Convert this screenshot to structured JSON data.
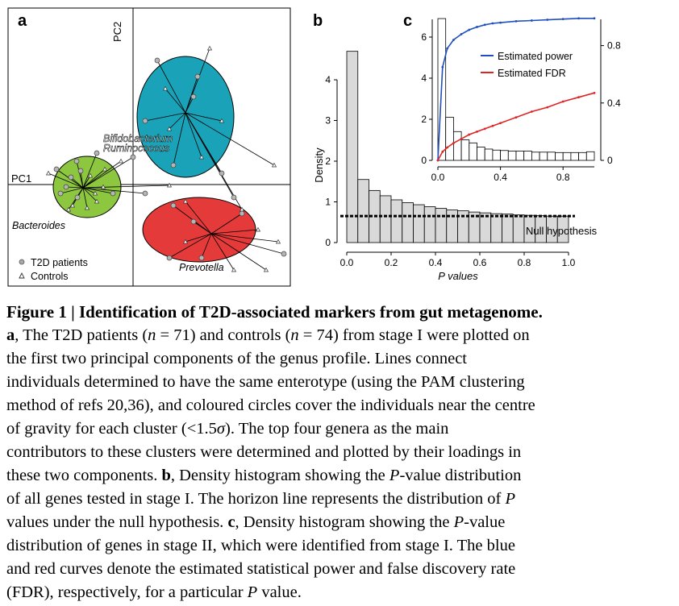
{
  "panel_a": {
    "label": "a",
    "axis_pc1": "PC1",
    "axis_pc2": "PC2",
    "genus_labels": [
      "Bifidobacterium",
      "Ruminococcus",
      "Bacteroides",
      "Prevotella"
    ],
    "legend": {
      "t2d": "T2D patients",
      "controls": "Controls"
    },
    "cluster_colors": {
      "green": "#8dc63f",
      "blue": "#1aa3b8",
      "red": "#e53a3a"
    }
  },
  "chart_data": [
    {
      "panel": "b",
      "type": "bar",
      "ylabel": "Density",
      "xlabel": "P values",
      "xlim": [
        0,
        1
      ],
      "ylim": [
        0,
        5
      ],
      "xticks": [
        "0.0",
        "0.2",
        "0.4",
        "0.6",
        "0.8",
        "1.0"
      ],
      "yticks": [
        "0",
        "1",
        "2",
        "3",
        "4"
      ],
      "bin_edges_start": [
        0.0,
        0.05,
        0.1,
        0.15,
        0.2,
        0.25,
        0.3,
        0.35,
        0.4,
        0.45,
        0.5,
        0.55,
        0.6,
        0.65,
        0.7,
        0.75,
        0.8,
        0.85,
        0.9,
        0.95
      ],
      "values": [
        4.7,
        1.55,
        1.28,
        1.15,
        1.05,
        0.98,
        0.93,
        0.88,
        0.84,
        0.8,
        0.78,
        0.75,
        0.73,
        0.71,
        0.7,
        0.68,
        0.67,
        0.66,
        0.65,
        0.65
      ],
      "null_density": 0.65,
      "null_label": "Null hypothesis",
      "bar_color": "#d9d9d9"
    },
    {
      "panel": "c",
      "type": "bar",
      "xlim": [
        0,
        1
      ],
      "ylim_left": [
        0,
        7
      ],
      "ylim_right": [
        0,
        1
      ],
      "xticks": [
        "0.0",
        "0.4",
        "0.8"
      ],
      "yticks_left": [
        "0",
        "2",
        "4",
        "6"
      ],
      "yticks_right": [
        "0",
        "0.4",
        "0.8"
      ],
      "bin_edges_start": [
        0.0,
        0.05,
        0.1,
        0.15,
        0.2,
        0.25,
        0.3,
        0.35,
        0.4,
        0.45,
        0.5,
        0.55,
        0.6,
        0.65,
        0.7,
        0.75,
        0.8,
        0.85,
        0.9,
        0.95
      ],
      "values": [
        6.9,
        2.1,
        1.4,
        1.0,
        0.85,
        0.65,
        0.55,
        0.5,
        0.48,
        0.45,
        0.45,
        0.45,
        0.4,
        0.4,
        0.4,
        0.38,
        0.38,
        0.38,
        0.38,
        0.42
      ],
      "series": [
        {
          "name": "Estimated power",
          "color": "#1f4fbf",
          "x": [
            0.0,
            0.03,
            0.06,
            0.1,
            0.15,
            0.2,
            0.25,
            0.3,
            0.35,
            0.4,
            0.5,
            0.6,
            0.7,
            0.8,
            0.9,
            1.0
          ],
          "y": [
            0.0,
            0.65,
            0.78,
            0.84,
            0.88,
            0.91,
            0.93,
            0.945,
            0.955,
            0.96,
            0.97,
            0.975,
            0.98,
            0.985,
            0.99,
            0.99
          ]
        },
        {
          "name": "Estimated FDR",
          "color": "#e02424",
          "x": [
            0.0,
            0.03,
            0.06,
            0.1,
            0.15,
            0.2,
            0.25,
            0.3,
            0.35,
            0.4,
            0.5,
            0.6,
            0.7,
            0.8,
            0.9,
            1.0
          ],
          "y": [
            0.0,
            0.06,
            0.09,
            0.12,
            0.15,
            0.18,
            0.2,
            0.22,
            0.24,
            0.26,
            0.3,
            0.34,
            0.37,
            0.41,
            0.44,
            0.47
          ]
        }
      ]
    }
  ],
  "caption": {
    "lines": [
      [
        {
          "t": "Figure 1",
          "s": "b"
        },
        {
          "t": " | ",
          "s": ""
        },
        {
          "t": "Identification of T2D-associated markers from gut metagenome.",
          "s": "b"
        }
      ],
      [
        {
          "t": "a",
          "s": "b"
        },
        {
          "t": ", The T2D patients (",
          "s": ""
        },
        {
          "t": "n",
          "s": "i"
        },
        {
          "t": " = 71) and controls (",
          "s": ""
        },
        {
          "t": "n",
          "s": "i"
        },
        {
          "t": " = 74) from stage I were plotted on",
          "s": ""
        }
      ],
      [
        {
          "t": "the first two principal components of the genus profile. Lines connect",
          "s": ""
        }
      ],
      [
        {
          "t": "individuals determined to have the same enterotype (using the PAM clustering",
          "s": ""
        }
      ],
      [
        {
          "t": "method of refs 20,36), and coloured circles cover the individuals near the centre",
          "s": ""
        }
      ],
      [
        {
          "t": "of gravity for each cluster (<1.5",
          "s": ""
        },
        {
          "t": "σ",
          "s": "i"
        },
        {
          "t": "). The top four genera as the main",
          "s": ""
        }
      ],
      [
        {
          "t": "contributors to these clusters were determined and plotted by their loadings in",
          "s": ""
        }
      ],
      [
        {
          "t": "these two components. ",
          "s": ""
        },
        {
          "t": "b",
          "s": "b"
        },
        {
          "t": ", Density histogram showing the ",
          "s": ""
        },
        {
          "t": "P",
          "s": "i"
        },
        {
          "t": "-value distribution",
          "s": ""
        }
      ],
      [
        {
          "t": "of all genes tested in stage I. The horizon line represents the distribution of ",
          "s": ""
        },
        {
          "t": "P",
          "s": "i"
        }
      ],
      [
        {
          "t": "values under the null hypothesis. ",
          "s": ""
        },
        {
          "t": "c",
          "s": "b"
        },
        {
          "t": ", Density histogram showing the ",
          "s": ""
        },
        {
          "t": "P",
          "s": "i"
        },
        {
          "t": "-value",
          "s": ""
        }
      ],
      [
        {
          "t": "distribution of genes in stage II, which were identified from stage I. The blue",
          "s": ""
        }
      ],
      [
        {
          "t": "and red curves denote the estimated statistical power and false discovery rate",
          "s": ""
        }
      ],
      [
        {
          "t": "(FDR), respectively, for a particular ",
          "s": ""
        },
        {
          "t": "P",
          "s": "i"
        },
        {
          "t": " value.",
          "s": ""
        }
      ]
    ]
  }
}
